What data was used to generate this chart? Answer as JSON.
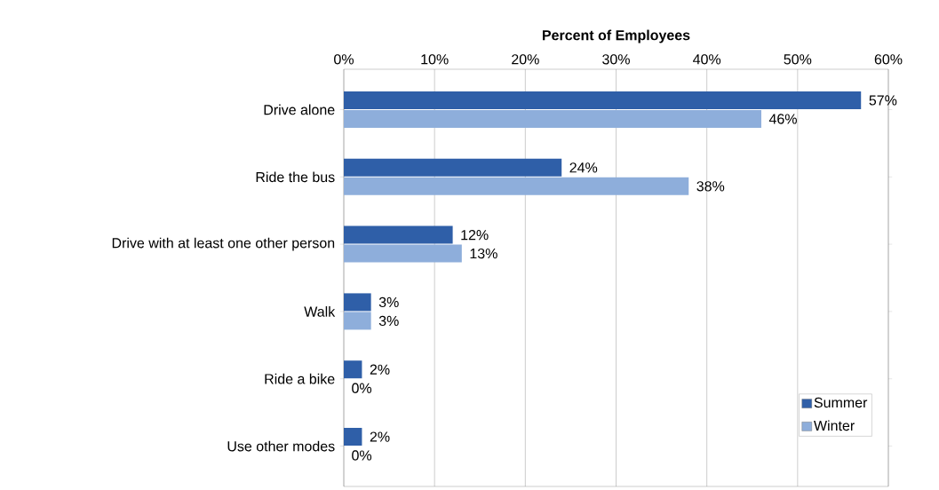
{
  "chart_data": {
    "type": "bar",
    "orientation": "horizontal",
    "xlabel": "Percent of Employees",
    "categories": [
      "Drive alone",
      "Ride the bus",
      "Drive with at least one other person",
      "Walk",
      "Ride a bike",
      "Use other modes"
    ],
    "series": [
      {
        "name": "Summer",
        "color": "#2f5fa8",
        "values": [
          57,
          24,
          12,
          3,
          2,
          2
        ],
        "value_labels": [
          "57%",
          "24%",
          "12%",
          "3%",
          "2%",
          "2%"
        ]
      },
      {
        "name": "Winter",
        "color": "#8eaedb",
        "values": [
          46,
          38,
          13,
          3,
          0,
          0
        ],
        "value_labels": [
          "46%",
          "38%",
          "13%",
          "3%",
          "0%",
          "0%"
        ]
      }
    ],
    "xlim": [
      0,
      60
    ],
    "xticks": [
      {
        "value": 0,
        "label": "0%"
      },
      {
        "value": 10,
        "label": "10%"
      },
      {
        "value": 20,
        "label": "20%"
      },
      {
        "value": 30,
        "label": "30%"
      },
      {
        "value": 40,
        "label": "40%"
      },
      {
        "value": 50,
        "label": "50%"
      },
      {
        "value": 60,
        "label": "60%"
      }
    ],
    "grid": "x",
    "legend": "bottom right"
  }
}
